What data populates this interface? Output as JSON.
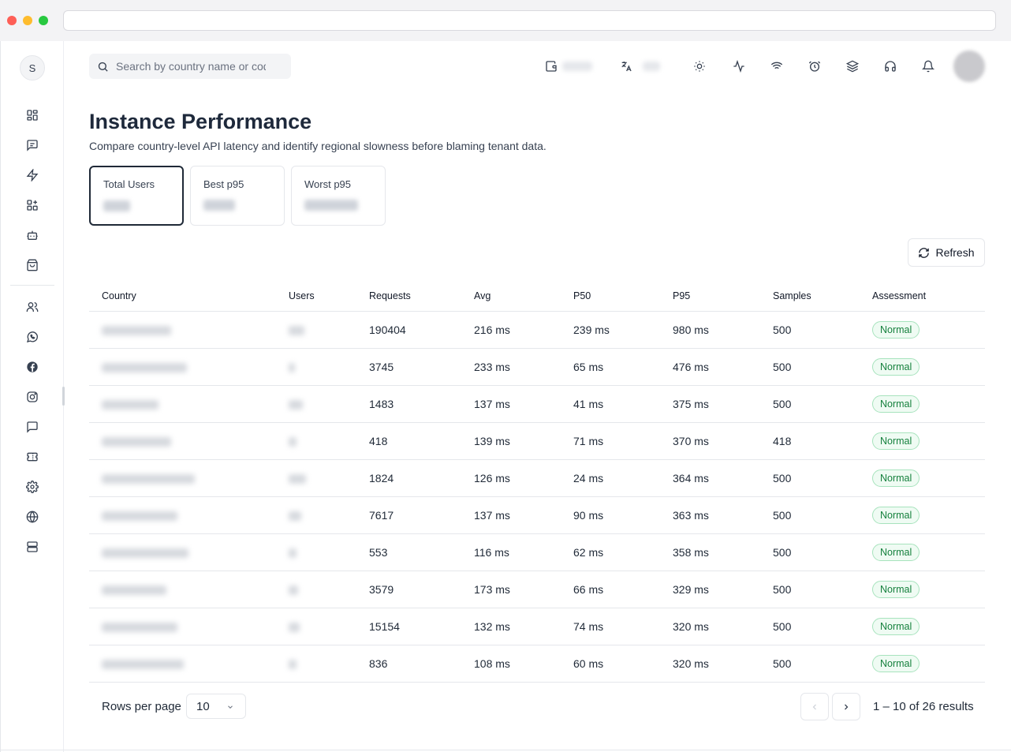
{
  "sidebar": {
    "avatar_initial": "S",
    "icons": [
      "dashboard-icon",
      "message-square-icon",
      "zap-icon",
      "apps-add-icon",
      "bot-icon",
      "inbox-icon",
      "users-icon",
      "whatsapp-icon",
      "facebook-icon",
      "instagram-icon",
      "chat-bubble-icon",
      "ticket-icon",
      "settings-icon",
      "globe-icon",
      "server-icon"
    ]
  },
  "search": {
    "placeholder": "Search by country name or code"
  },
  "header": {
    "icons": [
      "wallet-icon",
      "translate-icon",
      "sun-icon",
      "activity-icon",
      "wifi-icon",
      "alarm-clock-icon",
      "layers-icon",
      "headphones-icon",
      "bell-icon"
    ]
  },
  "page": {
    "title": "Instance Performance",
    "subtitle": "Compare country-level API latency and identify regional slowness before blaming tenant data."
  },
  "stats": [
    {
      "label": "Total Users",
      "active": true
    },
    {
      "label": "Best p95",
      "active": false
    },
    {
      "label": "Worst p95",
      "active": false
    }
  ],
  "toolbar": {
    "refresh_label": "Refresh"
  },
  "table": {
    "columns": [
      "Country",
      "Users",
      "Requests",
      "Avg",
      "P50",
      "P95",
      "Samples",
      "Assessment"
    ],
    "rows": [
      {
        "requests": "190404",
        "avg": "216 ms",
        "p50": "239 ms",
        "p95": "980 ms",
        "samples": "500",
        "assessment": "Normal"
      },
      {
        "requests": "3745",
        "avg": "233 ms",
        "p50": "65 ms",
        "p95": "476 ms",
        "samples": "500",
        "assessment": "Normal"
      },
      {
        "requests": "1483",
        "avg": "137 ms",
        "p50": "41 ms",
        "p95": "375 ms",
        "samples": "500",
        "assessment": "Normal"
      },
      {
        "requests": "418",
        "avg": "139 ms",
        "p50": "71 ms",
        "p95": "370 ms",
        "samples": "418",
        "assessment": "Normal"
      },
      {
        "requests": "1824",
        "avg": "126 ms",
        "p50": "24 ms",
        "p95": "364 ms",
        "samples": "500",
        "assessment": "Normal"
      },
      {
        "requests": "7617",
        "avg": "137 ms",
        "p50": "90 ms",
        "p95": "363 ms",
        "samples": "500",
        "assessment": "Normal"
      },
      {
        "requests": "553",
        "avg": "116 ms",
        "p50": "62 ms",
        "p95": "358 ms",
        "samples": "500",
        "assessment": "Normal"
      },
      {
        "requests": "3579",
        "avg": "173 ms",
        "p50": "66 ms",
        "p95": "329 ms",
        "samples": "500",
        "assessment": "Normal"
      },
      {
        "requests": "15154",
        "avg": "132 ms",
        "p50": "74 ms",
        "p95": "320 ms",
        "samples": "500",
        "assessment": "Normal"
      },
      {
        "requests": "836",
        "avg": "108 ms",
        "p50": "60 ms",
        "p95": "320 ms",
        "samples": "500",
        "assessment": "Normal"
      }
    ]
  },
  "pagination": {
    "rows_per_page_label": "Rows per page",
    "rows_per_page_value": "10",
    "results_text": "1 – 10 of 26 results"
  },
  "colors": {
    "badge_green": "#15803d",
    "title": "#1e293b"
  }
}
